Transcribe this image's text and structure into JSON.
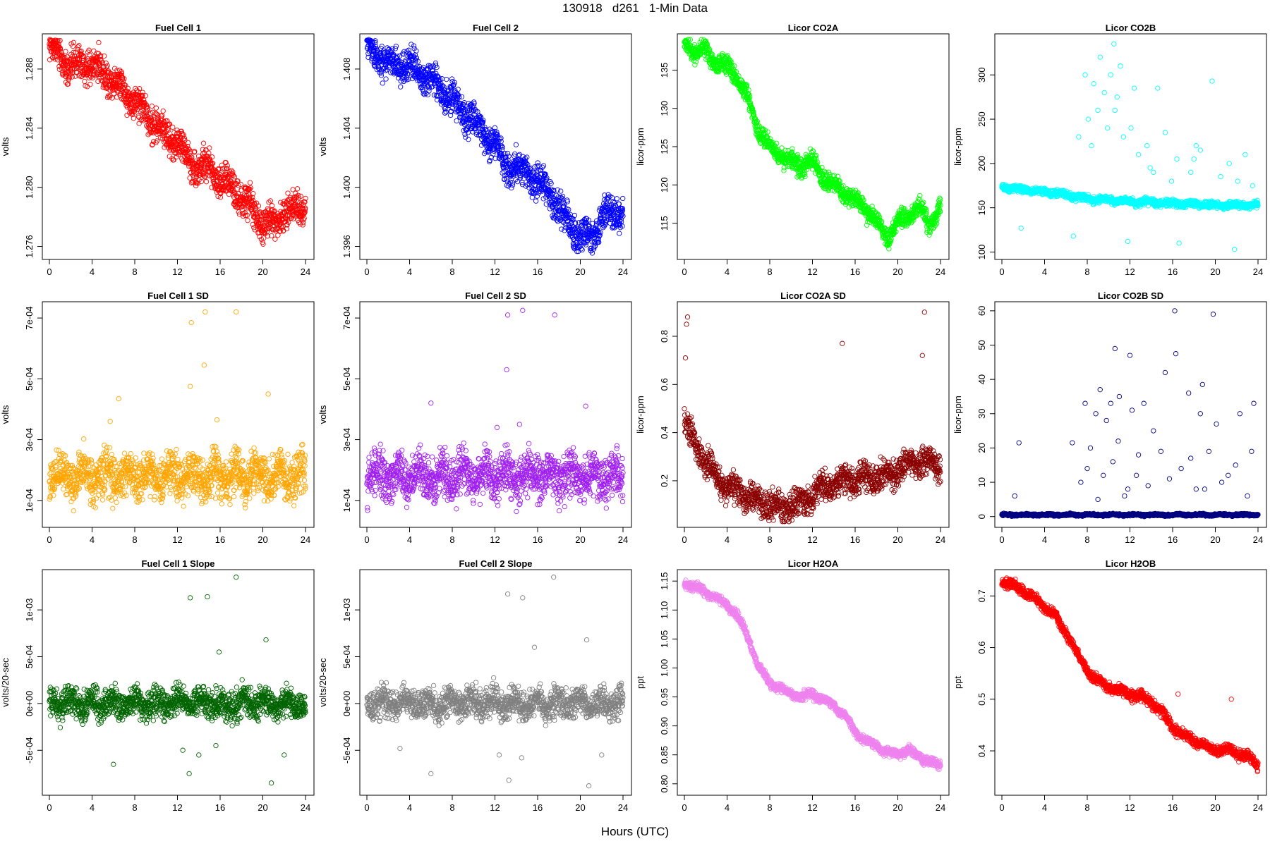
{
  "figure": {
    "title": "130918   d261   1-Min Data",
    "xlabel": "Hours (UTC)"
  },
  "chart_data": [
    {
      "type": "scatter",
      "title": "Fuel Cell 1",
      "ylabel": "volts",
      "color": "#ff0000",
      "xlim": [
        0,
        24
      ],
      "ylim": [
        1.2755,
        1.29
      ],
      "yticks": [
        "1.276",
        "1.280",
        "1.284",
        "1.288"
      ],
      "ytick_values": [
        1.276,
        1.28,
        1.284,
        1.288
      ],
      "xticks": [
        0,
        4,
        8,
        12,
        16,
        20,
        24
      ],
      "trend": {
        "x": [
          0,
          2,
          4,
          6,
          8,
          10,
          11,
          12,
          13,
          15,
          17,
          19,
          20,
          21,
          22,
          23,
          24
        ],
        "y": [
          1.2895,
          1.2882,
          1.2883,
          1.2873,
          1.2858,
          1.2842,
          1.2834,
          1.2832,
          1.2818,
          1.2812,
          1.28,
          1.2785,
          1.2775,
          1.2775,
          1.2783,
          1.2786,
          1.2787
        ]
      },
      "noise": 0.0009,
      "outliers": []
    },
    {
      "type": "scatter",
      "title": "Fuel Cell 2",
      "ylabel": "volts",
      "color": "#0000ff",
      "xlim": [
        0,
        24
      ],
      "ylim": [
        1.3955,
        1.41
      ],
      "yticks": [
        "1.396",
        "1.400",
        "1.404",
        "1.408"
      ],
      "ytick_values": [
        1.396,
        1.4,
        1.404,
        1.408
      ],
      "xticks": [
        0,
        4,
        8,
        12,
        16,
        20,
        24
      ],
      "trend": {
        "x": [
          0,
          2,
          4,
          6,
          8,
          10,
          11,
          12,
          13,
          15,
          17,
          19,
          20,
          21,
          22,
          23,
          24
        ],
        "y": [
          1.4095,
          1.4083,
          1.4082,
          1.4073,
          1.4058,
          1.4045,
          1.4035,
          1.403,
          1.4015,
          1.401,
          1.3998,
          1.3975,
          1.3965,
          1.3968,
          1.3978,
          1.3982,
          1.3985
        ]
      },
      "noise": 0.0009,
      "outliers": []
    },
    {
      "type": "scatter",
      "title": "Licor CO2A",
      "ylabel": "licor-ppm",
      "color": "#00ff00",
      "xlim": [
        0,
        24
      ],
      "ylim": [
        111,
        139
      ],
      "yticks": [
        "115",
        "120",
        "125",
        "130",
        "135"
      ],
      "ytick_values": [
        115,
        120,
        125,
        130,
        135
      ],
      "xticks": [
        0,
        4,
        8,
        12,
        16,
        20,
        24
      ],
      "trend": {
        "x": [
          0,
          1,
          2,
          3,
          4,
          5,
          6,
          7,
          8,
          9,
          10,
          11,
          12,
          13,
          14,
          15,
          16,
          17,
          18,
          19,
          20,
          21,
          22,
          23,
          24
        ],
        "y": [
          138.2,
          137.6,
          137.2,
          136,
          135.5,
          134,
          131,
          127,
          125,
          124,
          123,
          122.5,
          123,
          121,
          120,
          119,
          118,
          117,
          115,
          113,
          115,
          116,
          117,
          115,
          117
        ]
      },
      "noise": 1.0,
      "outliers": []
    },
    {
      "type": "scatter",
      "title": "Licor CO2B",
      "ylabel": "licor-ppm",
      "color": "#00ffff",
      "xlim": [
        0,
        24
      ],
      "ylim": [
        98,
        340
      ],
      "yticks": [
        "100",
        "150",
        "200",
        "250",
        "300"
      ],
      "ytick_values": [
        100,
        150,
        200,
        250,
        300
      ],
      "xticks": [
        0,
        4,
        8,
        12,
        16,
        20,
        24
      ],
      "trend": {
        "x": [
          0,
          4,
          6,
          8,
          12,
          16,
          20,
          24
        ],
        "y": [
          173,
          168,
          165,
          160,
          157,
          155,
          153,
          153
        ]
      },
      "noise": 3,
      "outliers": [
        [
          7.8,
          300
        ],
        [
          8.6,
          290
        ],
        [
          9.2,
          320
        ],
        [
          9.6,
          280
        ],
        [
          10.2,
          300
        ],
        [
          10.5,
          335
        ],
        [
          10.8,
          275
        ],
        [
          11.1,
          310
        ],
        [
          12.4,
          285
        ],
        [
          12.1,
          240
        ],
        [
          13.6,
          220
        ],
        [
          14.6,
          285
        ],
        [
          15.3,
          235
        ],
        [
          16.4,
          205
        ],
        [
          18.2,
          220
        ],
        [
          19.7,
          293
        ],
        [
          21.3,
          200
        ],
        [
          22.8,
          210
        ],
        [
          7.2,
          230
        ],
        [
          8.1,
          250
        ],
        [
          9.0,
          260
        ],
        [
          9.9,
          240
        ],
        [
          10.6,
          260
        ],
        [
          12.8,
          210
        ],
        [
          13.9,
          195
        ],
        [
          15.9,
          180
        ],
        [
          17.7,
          190
        ],
        [
          18.6,
          215
        ],
        [
          20.5,
          185
        ],
        [
          22.1,
          180
        ],
        [
          23.5,
          175
        ],
        [
          1.8,
          127
        ],
        [
          6.7,
          118
        ],
        [
          11.8,
          112
        ],
        [
          16.6,
          110
        ],
        [
          21.8,
          103
        ],
        [
          8.4,
          220
        ],
        [
          11.4,
          230
        ],
        [
          14.2,
          190
        ],
        [
          18.0,
          205
        ]
      ]
    },
    {
      "type": "scatter",
      "title": "Fuel Cell 1 SD",
      "ylabel": "volts",
      "color": "#ffa500",
      "xlim": [
        0,
        24
      ],
      "ylim": [
        3e-05,
        0.000735
      ],
      "yticks": [
        "1e-04",
        "3e-04",
        "5e-04",
        "7e-04"
      ],
      "ytick_values": [
        0.0001,
        0.0003,
        0.0005,
        0.0007
      ],
      "xticks": [
        0,
        4,
        8,
        12,
        16,
        20,
        24
      ],
      "trend": {
        "x": [
          0,
          24
        ],
        "y": [
          0.00018,
          0.00018
        ]
      },
      "noise": 6e-05,
      "outliers": [
        [
          13.3,
          0.000685
        ],
        [
          14.6,
          0.00072
        ],
        [
          17.5,
          0.00072
        ],
        [
          13.2,
          0.000475
        ],
        [
          14.5,
          0.000545
        ],
        [
          20.5,
          0.00045
        ],
        [
          6.5,
          0.000435
        ],
        [
          5.7,
          0.00036
        ],
        [
          15.7,
          0.000365
        ]
      ]
    },
    {
      "type": "scatter",
      "title": "Fuel Cell 2 SD",
      "ylabel": "volts",
      "color": "#a020f0",
      "xlim": [
        0,
        24
      ],
      "ylim": [
        3e-05,
        0.000735
      ],
      "yticks": [
        "1e-04",
        "3e-04",
        "5e-04",
        "7e-04"
      ],
      "ytick_values": [
        0.0001,
        0.0003,
        0.0005,
        0.0007
      ],
      "xticks": [
        0,
        4,
        8,
        12,
        16,
        20,
        24
      ],
      "trend": {
        "x": [
          0,
          24
        ],
        "y": [
          0.00018,
          0.00018
        ]
      },
      "noise": 6e-05,
      "outliers": [
        [
          13.2,
          0.00071
        ],
        [
          14.6,
          0.000725
        ],
        [
          17.6,
          0.00071
        ],
        [
          13.1,
          0.00053
        ],
        [
          6.0,
          0.00042
        ],
        [
          20.5,
          0.00041
        ],
        [
          14.3,
          0.00035
        ],
        [
          12.2,
          0.00034
        ]
      ]
    },
    {
      "type": "scatter",
      "title": "Licor CO2A SD",
      "ylabel": "licor-ppm",
      "color": "#8b0000",
      "xlim": [
        0,
        24
      ],
      "ylim": [
        0.03,
        0.92
      ],
      "yticks": [
        "0.2",
        "0.4",
        "0.6",
        "0.8"
      ],
      "ytick_values": [
        0.2,
        0.4,
        0.6,
        0.8
      ],
      "xticks": [
        0,
        4,
        8,
        12,
        16,
        20,
        24
      ],
      "trend": {
        "x": [
          0,
          1,
          2,
          3,
          4,
          6,
          8,
          9,
          10,
          11,
          12,
          14,
          16,
          18,
          20,
          22,
          24
        ],
        "y": [
          0.45,
          0.35,
          0.28,
          0.22,
          0.17,
          0.13,
          0.1,
          0.08,
          0.1,
          0.11,
          0.15,
          0.19,
          0.2,
          0.22,
          0.24,
          0.28,
          0.26
        ]
      },
      "noise": 0.05,
      "outliers": [
        [
          0.3,
          0.88
        ],
        [
          0.2,
          0.85
        ],
        [
          0.1,
          0.71
        ],
        [
          22.5,
          0.9
        ],
        [
          14.8,
          0.77
        ],
        [
          22.3,
          0.72
        ]
      ]
    },
    {
      "type": "scatter",
      "title": "Licor CO2B SD",
      "ylabel": "licor-ppm",
      "color": "#000080",
      "xlim": [
        0,
        24
      ],
      "ylim": [
        -1.5,
        61
      ],
      "yticks": [
        "0",
        "10",
        "20",
        "30",
        "40",
        "50",
        "60"
      ],
      "ytick_values": [
        0,
        10,
        20,
        30,
        40,
        50,
        60
      ],
      "xticks": [
        0,
        4,
        8,
        12,
        16,
        20,
        24
      ],
      "trend": {
        "x": [
          0,
          24
        ],
        "y": [
          0.5,
          0.5
        ]
      },
      "noise": 0.25,
      "outliers": [
        [
          16.2,
          60
        ],
        [
          19.8,
          59
        ],
        [
          10.6,
          49
        ],
        [
          12.0,
          47
        ],
        [
          16.3,
          47.5
        ],
        [
          15.3,
          42
        ],
        [
          18.8,
          38.5
        ],
        [
          9.2,
          37
        ],
        [
          10.2,
          33
        ],
        [
          11.0,
          35
        ],
        [
          13.3,
          33
        ],
        [
          7.8,
          33
        ],
        [
          8.8,
          30
        ],
        [
          9.8,
          28
        ],
        [
          12.2,
          31
        ],
        [
          14.2,
          25
        ],
        [
          17.5,
          36
        ],
        [
          18.6,
          30
        ],
        [
          20.1,
          27
        ],
        [
          22.3,
          30
        ],
        [
          23.6,
          33
        ],
        [
          1.6,
          21.5
        ],
        [
          6.6,
          21.5
        ],
        [
          8.3,
          20
        ],
        [
          10.9,
          22
        ],
        [
          12.8,
          18
        ],
        [
          14.9,
          19
        ],
        [
          17.7,
          17
        ],
        [
          19.4,
          19
        ],
        [
          21.9,
          15
        ],
        [
          23.4,
          19
        ],
        [
          7.4,
          10
        ],
        [
          9.5,
          12
        ],
        [
          11.8,
          8
        ],
        [
          13.7,
          9
        ],
        [
          15.7,
          11
        ],
        [
          18.2,
          8
        ],
        [
          20.6,
          10
        ],
        [
          23.0,
          6
        ],
        [
          1.2,
          6
        ],
        [
          8.0,
          14
        ],
        [
          10.4,
          16
        ],
        [
          12.6,
          12
        ],
        [
          16.8,
          14
        ],
        [
          21.2,
          12
        ],
        [
          19.0,
          8
        ],
        [
          9.0,
          5
        ],
        [
          11.5,
          6
        ]
      ]
    },
    {
      "type": "scatter",
      "title": "Fuel Cell 1 Slope",
      "ylabel": "volts/20-sec",
      "color": "#006400",
      "xlim": [
        0,
        24
      ],
      "ylim": [
        -0.00092,
        0.00137
      ],
      "yticks": [
        "-5e-04",
        "0e+00",
        "5e-04",
        "1e-03"
      ],
      "ytick_values": [
        -0.0005,
        0,
        0.0005,
        0.001
      ],
      "xticks": [
        0,
        4,
        8,
        12,
        16,
        20,
        24
      ],
      "trend": {
        "x": [
          0,
          24
        ],
        "y": [
          0,
          0
        ]
      },
      "noise": 0.00013,
      "outliers": [
        [
          17.5,
          0.00135
        ],
        [
          13.2,
          0.00113
        ],
        [
          14.8,
          0.00114
        ],
        [
          20.3,
          0.00068
        ],
        [
          15.9,
          0.00055
        ],
        [
          13.1,
          -0.00075
        ],
        [
          20.8,
          -0.00085
        ],
        [
          6.0,
          -0.00065
        ],
        [
          14.0,
          -0.00055
        ],
        [
          12.5,
          -0.0005
        ],
        [
          22.0,
          -0.00055
        ],
        [
          15.6,
          -0.00045
        ]
      ]
    },
    {
      "type": "scatter",
      "title": "Fuel Cell 2 Slope",
      "ylabel": "volts/20-sec",
      "color": "#808080",
      "xlim": [
        0,
        24
      ],
      "ylim": [
        -0.00092,
        0.00137
      ],
      "yticks": [
        "-5e-04",
        "0e+00",
        "5e-04",
        "1e-03"
      ],
      "ytick_values": [
        -0.0005,
        0,
        0.0005,
        0.001
      ],
      "xticks": [
        0,
        4,
        8,
        12,
        16,
        20,
        24
      ],
      "trend": {
        "x": [
          0,
          24
        ],
        "y": [
          0,
          0
        ]
      },
      "noise": 0.00013,
      "outliers": [
        [
          17.5,
          0.00135
        ],
        [
          13.2,
          0.00117
        ],
        [
          14.6,
          0.00113
        ],
        [
          20.6,
          0.00068
        ],
        [
          15.7,
          0.0006
        ],
        [
          13.3,
          -0.00082
        ],
        [
          20.8,
          -0.00088
        ],
        [
          6.0,
          -0.00075
        ],
        [
          14.5,
          -0.00058
        ],
        [
          12.4,
          -0.00055
        ],
        [
          22.0,
          -0.00055
        ],
        [
          3.1,
          -0.00048
        ]
      ]
    },
    {
      "type": "scatter",
      "title": "Licor H2OA",
      "ylabel": "ppt",
      "color": "#ee82ee",
      "xlim": [
        0,
        24
      ],
      "ylim": [
        0.79,
        1.16
      ],
      "yticks": [
        "0.80",
        "0.85",
        "0.90",
        "0.95",
        "1.00",
        "1.05",
        "1.10",
        "1.15"
      ],
      "ytick_values": [
        0.8,
        0.85,
        0.9,
        0.95,
        1.0,
        1.05,
        1.1,
        1.15
      ],
      "xticks": [
        0,
        4,
        8,
        12,
        16,
        20,
        24
      ],
      "trend": {
        "x": [
          0,
          1,
          2,
          3,
          4,
          5,
          6,
          7,
          8,
          9,
          10,
          11,
          12,
          13,
          14,
          15,
          16,
          17,
          18,
          19,
          20,
          21,
          22,
          23,
          24
        ],
        "y": [
          1.145,
          1.14,
          1.13,
          1.12,
          1.11,
          1.09,
          1.05,
          1.0,
          0.975,
          0.965,
          0.955,
          0.95,
          0.955,
          0.945,
          0.935,
          0.92,
          0.89,
          0.875,
          0.865,
          0.855,
          0.85,
          0.86,
          0.845,
          0.84,
          0.83
        ]
      },
      "noise": 0.006,
      "outliers": []
    },
    {
      "type": "scatter",
      "title": "Licor H2OB",
      "ylabel": "ppt",
      "color": "#ff0000",
      "xlim": [
        0,
        24
      ],
      "ylim": [
        0.325,
        0.74
      ],
      "yticks": [
        "0.4",
        "0.5",
        "0.6",
        "0.7"
      ],
      "ytick_values": [
        0.4,
        0.5,
        0.6,
        0.7
      ],
      "xticks": [
        0,
        4,
        8,
        12,
        16,
        20,
        24
      ],
      "trend": {
        "x": [
          0,
          1,
          2,
          3,
          4,
          5,
          6,
          7,
          8,
          9,
          10,
          11,
          12,
          13,
          14,
          15,
          16,
          17,
          18,
          19,
          20,
          21,
          22,
          23,
          24
        ],
        "y": [
          0.728,
          0.72,
          0.71,
          0.695,
          0.68,
          0.66,
          0.63,
          0.59,
          0.555,
          0.535,
          0.525,
          0.515,
          0.51,
          0.505,
          0.495,
          0.475,
          0.445,
          0.43,
          0.42,
          0.41,
          0.4,
          0.405,
          0.395,
          0.39,
          0.37
        ]
      },
      "noise": 0.008,
      "outliers": [
        [
          16.5,
          0.51
        ],
        [
          21.5,
          0.5
        ]
      ]
    }
  ]
}
